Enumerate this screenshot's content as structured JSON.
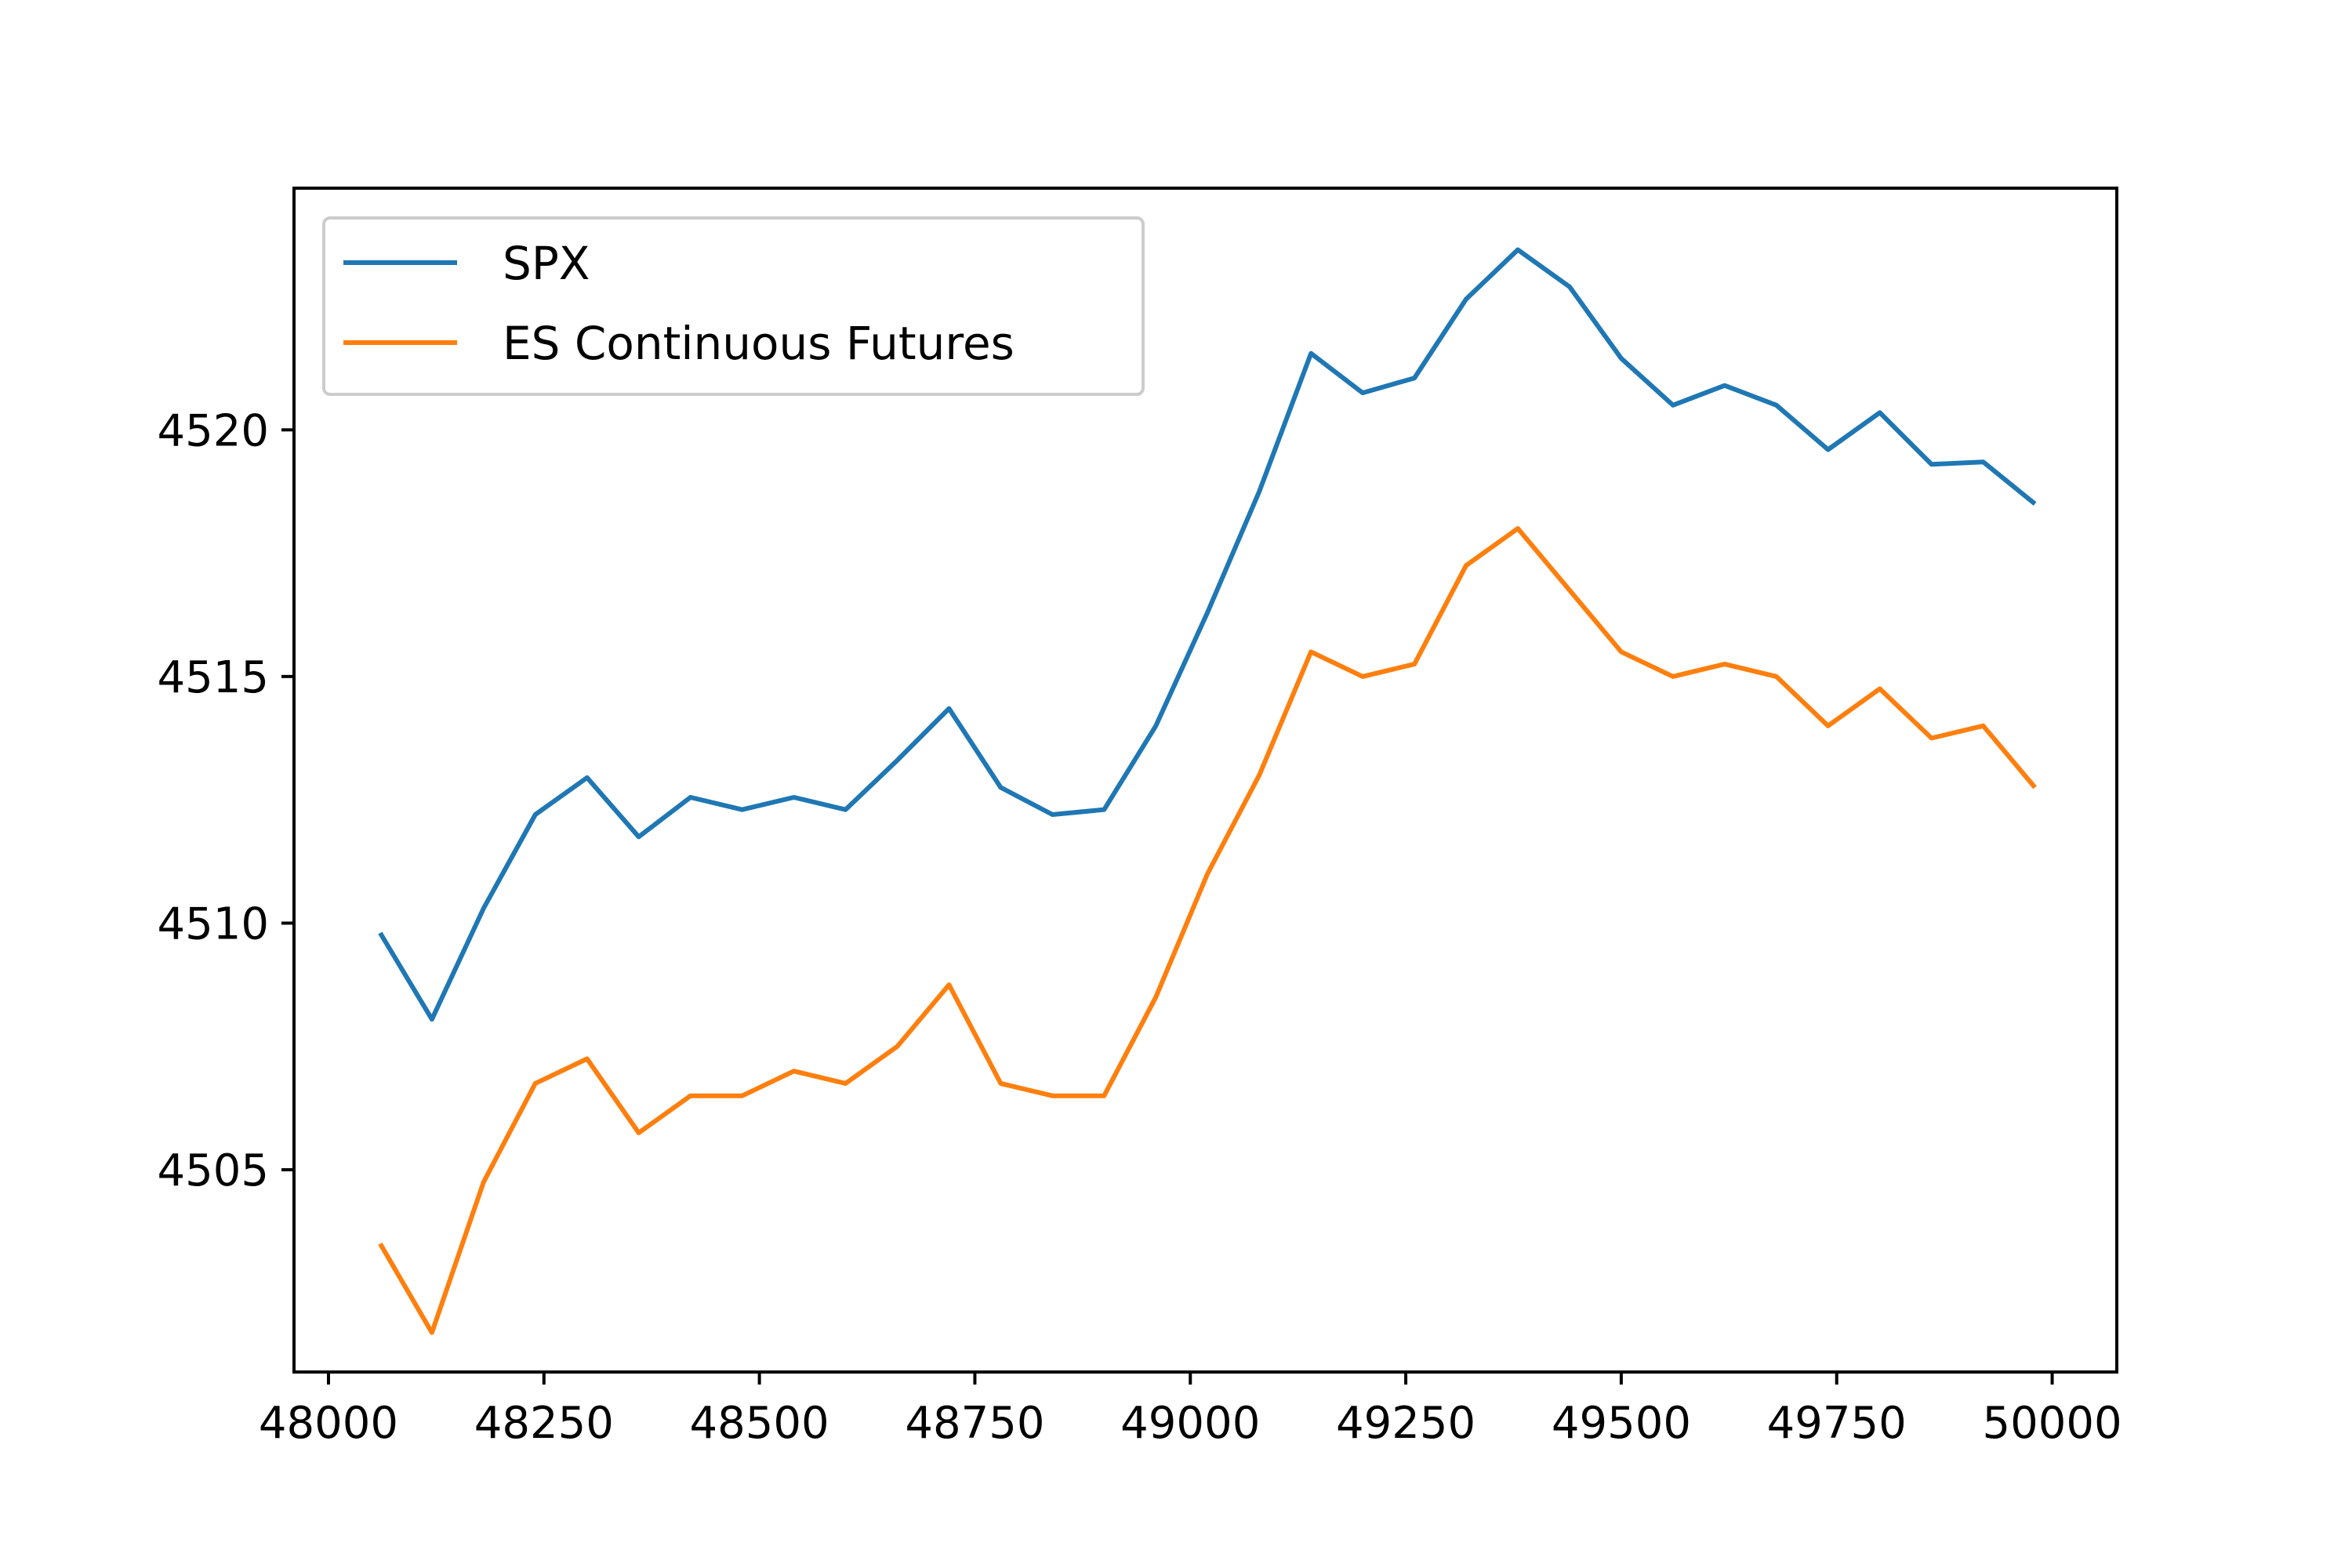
{
  "chart_data": {
    "type": "line",
    "title": "",
    "xlabel": "",
    "ylabel": "",
    "xlim": [
      47960,
      50075
    ],
    "ylim": [
      4500.9,
      4524.9
    ],
    "x_ticks": [
      48000,
      48250,
      48500,
      48750,
      49000,
      49250,
      49500,
      49750,
      50000
    ],
    "y_ticks": [
      4505,
      4510,
      4515,
      4520
    ],
    "grid": false,
    "legend_position": "top-left",
    "x": [
      48060,
      48120,
      48180,
      48240,
      48300,
      48360,
      48420,
      48480,
      48540,
      48600,
      48660,
      48720,
      48780,
      48840,
      48900,
      48960,
      49020,
      49080,
      49140,
      49200,
      49260,
      49320,
      49380,
      49440,
      49500,
      49560,
      49620,
      49680,
      49740,
      49800,
      49860,
      49920,
      49980
    ],
    "series": [
      {
        "name": "SPX",
        "color": "#1f77b4",
        "values": [
          4509.8,
          4508.05,
          4510.3,
          4512.2,
          4512.95,
          4511.75,
          4512.55,
          4512.3,
          4512.55,
          4512.3,
          4513.3,
          4514.35,
          4512.75,
          4512.2,
          4512.3,
          4514.0,
          4516.3,
          4518.75,
          4521.55,
          4520.75,
          4521.05,
          4522.65,
          4523.65,
          4522.9,
          4521.45,
          4520.5,
          4520.9,
          4520.5,
          4519.6,
          4520.35,
          4519.3,
          4519.35,
          4518.5
        ]
      },
      {
        "name": "ES Continuous Futures",
        "color": "#ff7f0e",
        "values": [
          4503.5,
          4501.7,
          4504.75,
          4506.75,
          4507.25,
          4505.75,
          4506.5,
          4506.5,
          4507.0,
          4506.75,
          4507.5,
          4508.75,
          4506.75,
          4506.5,
          4506.5,
          4508.5,
          4511.0,
          4513.0,
          4515.5,
          4515.0,
          4515.25,
          4517.25,
          4518.0,
          4516.75,
          4515.5,
          4515.0,
          4515.25,
          4515.0,
          4514.0,
          4514.75,
          4513.75,
          4514.0,
          4512.75
        ]
      }
    ]
  }
}
